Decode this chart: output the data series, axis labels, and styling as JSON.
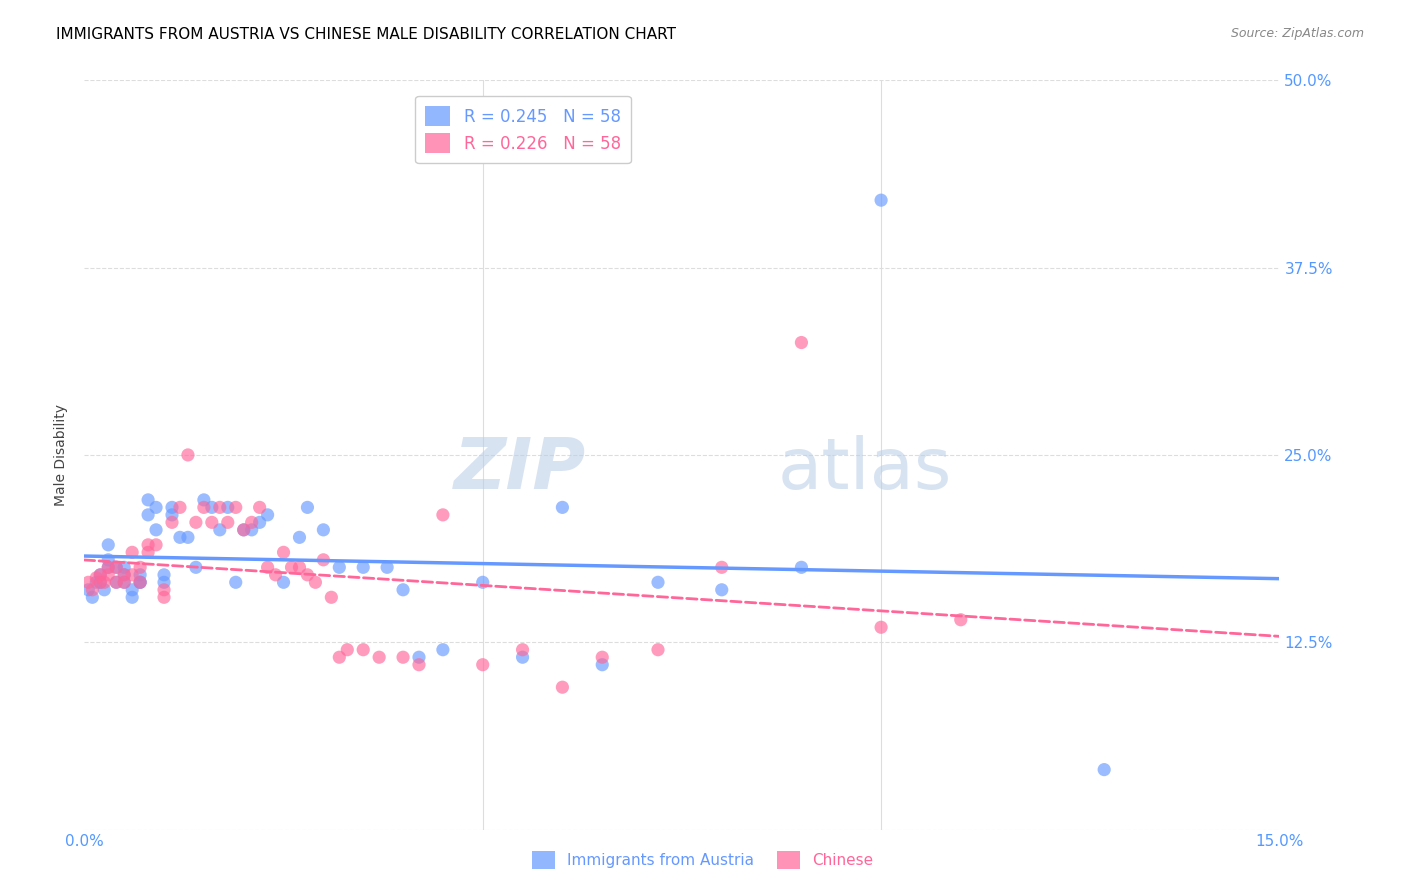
{
  "title": "IMMIGRANTS FROM AUSTRIA VS CHINESE MALE DISABILITY CORRELATION CHART",
  "source": "Source: ZipAtlas.com",
  "ylabel_label": "Male Disability",
  "xlim": [
    0.0,
    0.15
  ],
  "ylim": [
    0.0,
    0.5
  ],
  "xticks": [
    0.0,
    0.05,
    0.1,
    0.15
  ],
  "xticklabels": [
    "0.0%",
    "",
    "",
    "15.0%"
  ],
  "yticks": [
    0.0,
    0.125,
    0.25,
    0.375,
    0.5
  ],
  "yticklabels": [
    "",
    "12.5%",
    "25.0%",
    "37.5%",
    "50.0%"
  ],
  "austria_color": "#6699ff",
  "chinese_color": "#ff6699",
  "austria_R": 0.245,
  "austria_N": 58,
  "chinese_R": 0.226,
  "chinese_N": 58,
  "legend_entries": [
    "Immigrants from Austria",
    "Chinese"
  ],
  "austria_x": [
    0.0005,
    0.001,
    0.0015,
    0.002,
    0.002,
    0.0025,
    0.003,
    0.003,
    0.003,
    0.004,
    0.004,
    0.005,
    0.005,
    0.005,
    0.006,
    0.006,
    0.007,
    0.007,
    0.007,
    0.008,
    0.008,
    0.009,
    0.009,
    0.01,
    0.01,
    0.011,
    0.011,
    0.012,
    0.013,
    0.014,
    0.015,
    0.016,
    0.017,
    0.018,
    0.019,
    0.02,
    0.021,
    0.022,
    0.023,
    0.025,
    0.027,
    0.028,
    0.03,
    0.032,
    0.035,
    0.038,
    0.04,
    0.042,
    0.045,
    0.05,
    0.055,
    0.06,
    0.065,
    0.072,
    0.08,
    0.09,
    0.1,
    0.128
  ],
  "austria_y": [
    0.16,
    0.155,
    0.165,
    0.165,
    0.17,
    0.16,
    0.175,
    0.18,
    0.19,
    0.165,
    0.175,
    0.165,
    0.17,
    0.175,
    0.155,
    0.16,
    0.17,
    0.165,
    0.165,
    0.21,
    0.22,
    0.2,
    0.215,
    0.165,
    0.17,
    0.21,
    0.215,
    0.195,
    0.195,
    0.175,
    0.22,
    0.215,
    0.2,
    0.215,
    0.165,
    0.2,
    0.2,
    0.205,
    0.21,
    0.165,
    0.195,
    0.215,
    0.2,
    0.175,
    0.175,
    0.175,
    0.16,
    0.115,
    0.12,
    0.165,
    0.115,
    0.215,
    0.11,
    0.165,
    0.16,
    0.175,
    0.42,
    0.04
  ],
  "chinese_x": [
    0.0005,
    0.001,
    0.0015,
    0.002,
    0.002,
    0.0025,
    0.003,
    0.003,
    0.004,
    0.004,
    0.005,
    0.005,
    0.006,
    0.006,
    0.007,
    0.007,
    0.008,
    0.008,
    0.009,
    0.01,
    0.01,
    0.011,
    0.012,
    0.013,
    0.014,
    0.015,
    0.016,
    0.017,
    0.018,
    0.019,
    0.02,
    0.021,
    0.022,
    0.023,
    0.024,
    0.025,
    0.026,
    0.027,
    0.028,
    0.029,
    0.03,
    0.031,
    0.032,
    0.033,
    0.035,
    0.037,
    0.04,
    0.042,
    0.045,
    0.05,
    0.055,
    0.06,
    0.065,
    0.072,
    0.08,
    0.09,
    0.1,
    0.11
  ],
  "chinese_y": [
    0.165,
    0.16,
    0.168,
    0.165,
    0.17,
    0.165,
    0.17,
    0.175,
    0.165,
    0.175,
    0.17,
    0.165,
    0.17,
    0.185,
    0.165,
    0.175,
    0.185,
    0.19,
    0.19,
    0.155,
    0.16,
    0.205,
    0.215,
    0.25,
    0.205,
    0.215,
    0.205,
    0.215,
    0.205,
    0.215,
    0.2,
    0.205,
    0.215,
    0.175,
    0.17,
    0.185,
    0.175,
    0.175,
    0.17,
    0.165,
    0.18,
    0.155,
    0.115,
    0.12,
    0.12,
    0.115,
    0.115,
    0.11,
    0.21,
    0.11,
    0.12,
    0.095,
    0.115,
    0.12,
    0.175,
    0.325,
    0.135,
    0.14
  ],
  "watermark_zip": "ZIP",
  "watermark_atlas": "atlas",
  "background_color": "#ffffff",
  "grid_color": "#dddddd",
  "tick_color": "#5599ff",
  "title_fontsize": 11,
  "axis_label_fontsize": 10,
  "tick_fontsize": 11
}
